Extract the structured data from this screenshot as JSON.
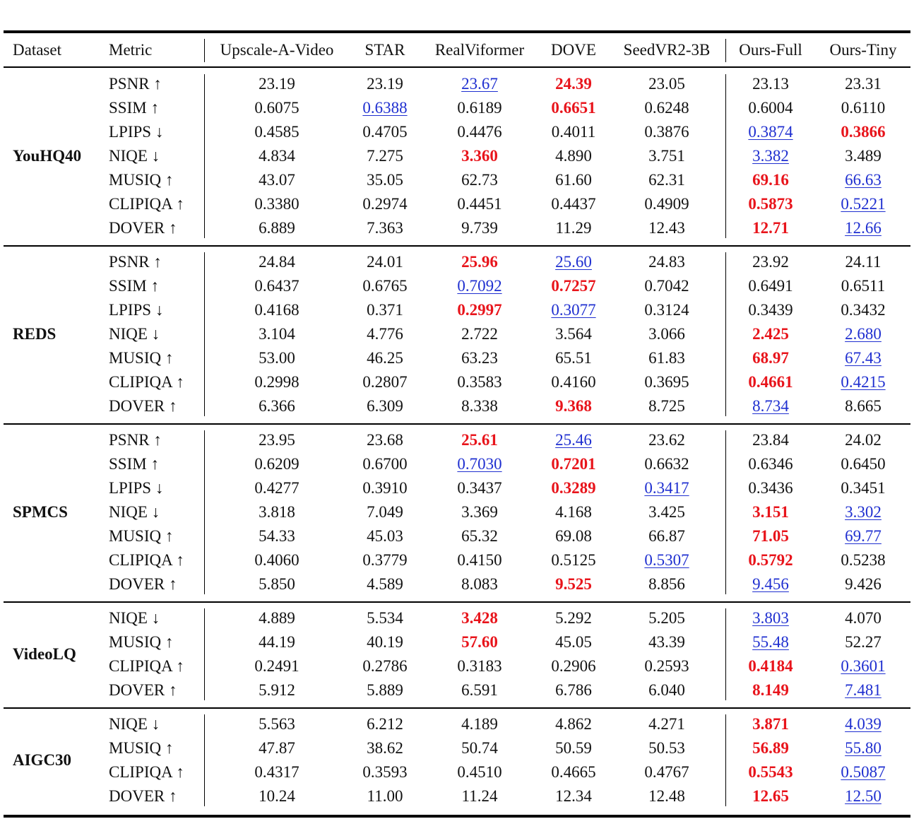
{
  "columns": [
    "Dataset",
    "Metric",
    "Upscale-A-Video",
    "STAR",
    "RealViformer",
    "DOVE",
    "SeedVR2-3B",
    "Ours-Full",
    "Ours-Tiny"
  ],
  "groups": [
    {
      "name": "YouHQ40",
      "rows": [
        {
          "metric": "PSNR ↑",
          "values": [
            "23.19",
            "23.19",
            "23.67",
            "24.39",
            "23.05",
            "23.13",
            "23.31"
          ],
          "best": 3,
          "second": 2
        },
        {
          "metric": "SSIM ↑",
          "values": [
            "0.6075",
            "0.6388",
            "0.6189",
            "0.6651",
            "0.6248",
            "0.6004",
            "0.6110"
          ],
          "best": 3,
          "second": 1
        },
        {
          "metric": "LPIPS ↓",
          "values": [
            "0.4585",
            "0.4705",
            "0.4476",
            "0.4011",
            "0.3876",
            "0.3874",
            "0.3866"
          ],
          "best": 6,
          "second": 5
        },
        {
          "metric": "NIQE ↓",
          "values": [
            "4.834",
            "7.275",
            "3.360",
            "4.890",
            "3.751",
            "3.382",
            "3.489"
          ],
          "best": 2,
          "second": 5
        },
        {
          "metric": "MUSIQ ↑",
          "values": [
            "43.07",
            "35.05",
            "62.73",
            "61.60",
            "62.31",
            "69.16",
            "66.63"
          ],
          "best": 5,
          "second": 6
        },
        {
          "metric": "CLIPIQA ↑",
          "values": [
            "0.3380",
            "0.2974",
            "0.4451",
            "0.4437",
            "0.4909",
            "0.5873",
            "0.5221"
          ],
          "best": 5,
          "second": 6
        },
        {
          "metric": "DOVER ↑",
          "values": [
            "6.889",
            "7.363",
            "9.739",
            "11.29",
            "12.43",
            "12.71",
            "12.66"
          ],
          "best": 5,
          "second": 6
        }
      ]
    },
    {
      "name": "REDS",
      "rows": [
        {
          "metric": "PSNR ↑",
          "values": [
            "24.84",
            "24.01",
            "25.96",
            "25.60",
            "24.83",
            "23.92",
            "24.11"
          ],
          "best": 2,
          "second": 3
        },
        {
          "metric": "SSIM ↑",
          "values": [
            "0.6437",
            "0.6765",
            "0.7092",
            "0.7257",
            "0.7042",
            "0.6491",
            "0.6511"
          ],
          "best": 3,
          "second": 2
        },
        {
          "metric": "LPIPS ↓",
          "values": [
            "0.4168",
            "0.371",
            "0.2997",
            "0.3077",
            "0.3124",
            "0.3439",
            "0.3432"
          ],
          "best": 2,
          "second": 3
        },
        {
          "metric": "NIQE ↓",
          "values": [
            "3.104",
            "4.776",
            "2.722",
            "3.564",
            "3.066",
            "2.425",
            "2.680"
          ],
          "best": 5,
          "second": 6
        },
        {
          "metric": "MUSIQ ↑",
          "values": [
            "53.00",
            "46.25",
            "63.23",
            "65.51",
            "61.83",
            "68.97",
            "67.43"
          ],
          "best": 5,
          "second": 6
        },
        {
          "metric": "CLIPIQA ↑",
          "values": [
            "0.2998",
            "0.2807",
            "0.3583",
            "0.4160",
            "0.3695",
            "0.4661",
            "0.4215"
          ],
          "best": 5,
          "second": 6
        },
        {
          "metric": "DOVER ↑",
          "values": [
            "6.366",
            "6.309",
            "8.338",
            "9.368",
            "8.725",
            "8.734",
            "8.665"
          ],
          "best": 3,
          "second": 5
        }
      ]
    },
    {
      "name": "SPMCS",
      "rows": [
        {
          "metric": "PSNR ↑",
          "values": [
            "23.95",
            "23.68",
            "25.61",
            "25.46",
            "23.62",
            "23.84",
            "24.02"
          ],
          "best": 2,
          "second": 3
        },
        {
          "metric": "SSIM ↑",
          "values": [
            "0.6209",
            "0.6700",
            "0.7030",
            "0.7201",
            "0.6632",
            "0.6346",
            "0.6450"
          ],
          "best": 3,
          "second": 2
        },
        {
          "metric": "LPIPS ↓",
          "values": [
            "0.4277",
            "0.3910",
            "0.3437",
            "0.3289",
            "0.3417",
            "0.3436",
            "0.3451"
          ],
          "best": 3,
          "second": 4
        },
        {
          "metric": "NIQE ↓",
          "values": [
            "3.818",
            "7.049",
            "3.369",
            "4.168",
            "3.425",
            "3.151",
            "3.302"
          ],
          "best": 5,
          "second": 6
        },
        {
          "metric": "MUSIQ ↑",
          "values": [
            "54.33",
            "45.03",
            "65.32",
            "69.08",
            "66.87",
            "71.05",
            "69.77"
          ],
          "best": 5,
          "second": 6
        },
        {
          "metric": "CLIPIQA ↑",
          "values": [
            "0.4060",
            "0.3779",
            "0.4150",
            "0.5125",
            "0.5307",
            "0.5792",
            "0.5238"
          ],
          "best": 5,
          "second": 4
        },
        {
          "metric": "DOVER ↑",
          "values": [
            "5.850",
            "4.589",
            "8.083",
            "9.525",
            "8.856",
            "9.456",
            "9.426"
          ],
          "best": 3,
          "second": 5
        }
      ]
    },
    {
      "name": "VideoLQ",
      "rows": [
        {
          "metric": "NIQE ↓",
          "values": [
            "4.889",
            "5.534",
            "3.428",
            "5.292",
            "5.205",
            "3.803",
            "4.070"
          ],
          "best": 2,
          "second": 5
        },
        {
          "metric": "MUSIQ ↑",
          "values": [
            "44.19",
            "40.19",
            "57.60",
            "45.05",
            "43.39",
            "55.48",
            "52.27"
          ],
          "best": 2,
          "second": 5
        },
        {
          "metric": "CLIPIQA ↑",
          "values": [
            "0.2491",
            "0.2786",
            "0.3183",
            "0.2906",
            "0.2593",
            "0.4184",
            "0.3601"
          ],
          "best": 5,
          "second": 6
        },
        {
          "metric": "DOVER ↑",
          "values": [
            "5.912",
            "5.889",
            "6.591",
            "6.786",
            "6.040",
            "8.149",
            "7.481"
          ],
          "best": 5,
          "second": 6
        }
      ]
    },
    {
      "name": "AIGC30",
      "rows": [
        {
          "metric": "NIQE ↓",
          "values": [
            "5.563",
            "6.212",
            "4.189",
            "4.862",
            "4.271",
            "3.871",
            "4.039"
          ],
          "best": 5,
          "second": 6
        },
        {
          "metric": "MUSIQ ↑",
          "values": [
            "47.87",
            "38.62",
            "50.74",
            "50.59",
            "50.53",
            "56.89",
            "55.80"
          ],
          "best": 5,
          "second": 6
        },
        {
          "metric": "CLIPIQA ↑",
          "values": [
            "0.4317",
            "0.3593",
            "0.4510",
            "0.4665",
            "0.4767",
            "0.5543",
            "0.5087"
          ],
          "best": 5,
          "second": 6
        },
        {
          "metric": "DOVER ↑",
          "values": [
            "10.24",
            "11.00",
            "11.24",
            "12.34",
            "12.48",
            "12.65",
            "12.50"
          ],
          "best": 5,
          "second": 6
        }
      ]
    }
  ]
}
